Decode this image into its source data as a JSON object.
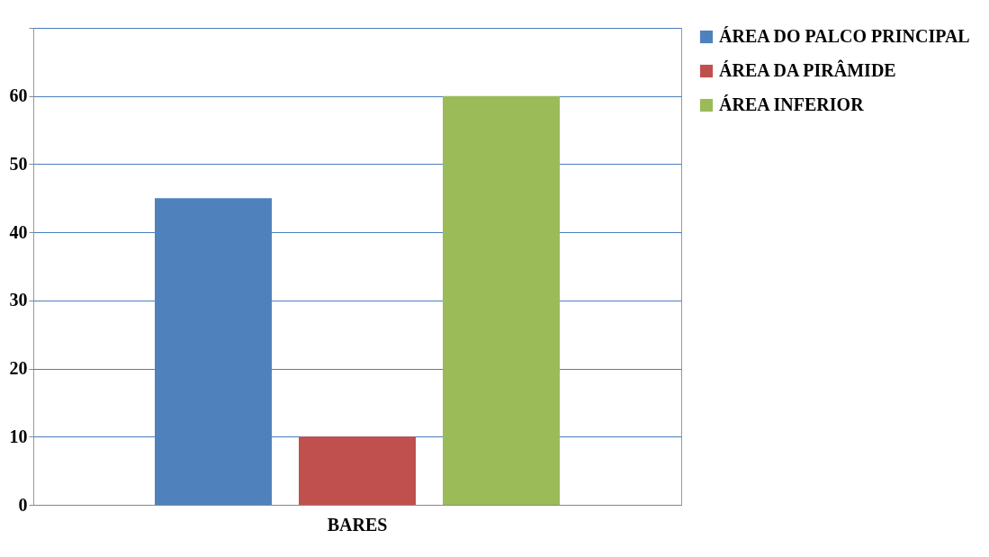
{
  "chart_data": {
    "type": "bar",
    "categories": [
      "BARES"
    ],
    "series": [
      {
        "name": "ÁREA DO PALCO PRINCIPAL",
        "color": "#4f81bd",
        "values": [
          45
        ]
      },
      {
        "name": "ÁREA DA PIRÂMIDE",
        "color": "#c0504d",
        "values": [
          10
        ]
      },
      {
        "name": "ÁREA INFERIOR",
        "color": "#9bbb59",
        "values": [
          60
        ]
      }
    ],
    "ylim": [
      0,
      70
    ],
    "yticks": [
      0,
      10,
      20,
      30,
      40,
      50,
      60,
      {
        "value": 70,
        "label": null
      }
    ],
    "grid": "y",
    "legend": "right"
  }
}
